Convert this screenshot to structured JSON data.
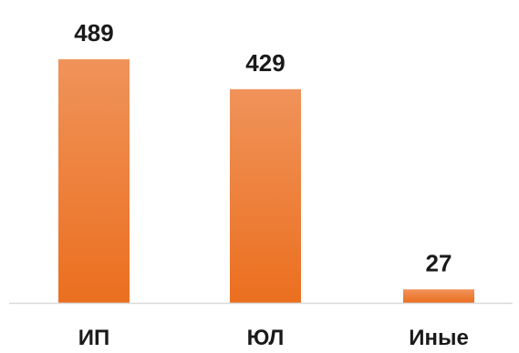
{
  "chart_data": {
    "type": "bar",
    "categories": [
      "ИП",
      "ЮЛ",
      "Иные"
    ],
    "values": [
      489,
      429,
      27
    ],
    "title": "",
    "xlabel": "",
    "ylabel": "",
    "ylim": [
      0,
      489
    ],
    "grid": false,
    "legend": "none",
    "data_labels": true
  },
  "colors": {
    "bar_top": "#f0935a",
    "bar_bottom": "#eb6f1f",
    "axis": "#d9d9d9",
    "text": "#1a1a1a"
  }
}
